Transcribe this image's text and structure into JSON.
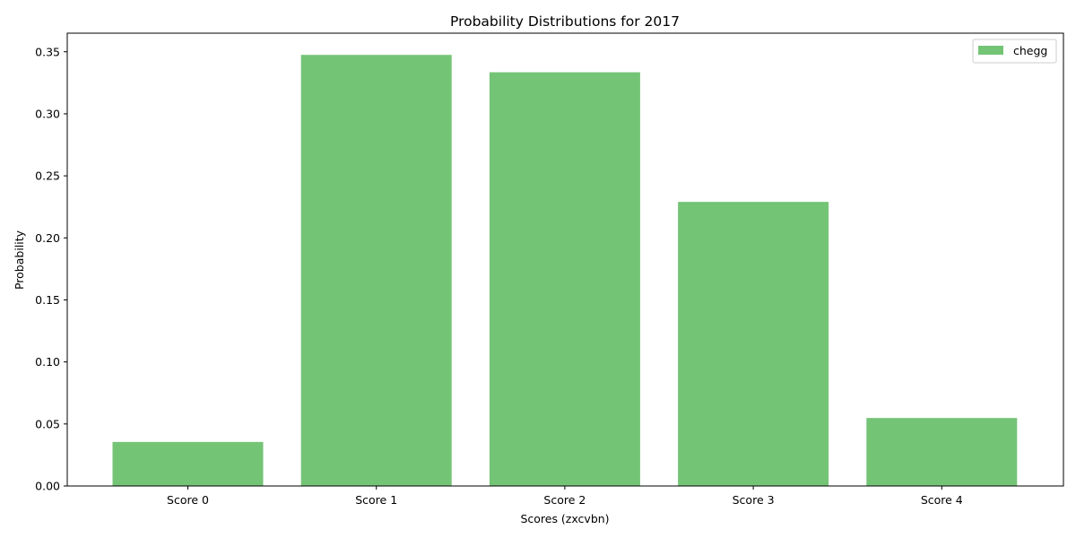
{
  "chart_data": {
    "type": "bar",
    "title": "Probability Distributions for 2017",
    "xlabel": "Scores (zxcvbn)",
    "ylabel": "Probability",
    "categories": [
      "Score 0",
      "Score 1",
      "Score 2",
      "Score 3",
      "Score 4"
    ],
    "series": [
      {
        "name": "chegg",
        "values": [
          0.0355,
          0.3475,
          0.3335,
          0.229,
          0.0548
        ],
        "color": "#74c476"
      }
    ],
    "ylim": [
      0,
      0.365
    ],
    "yticks": [
      0.0,
      0.05,
      0.1,
      0.15,
      0.2,
      0.25,
      0.3,
      0.35
    ],
    "ytick_labels": [
      "0.00",
      "0.05",
      "0.10",
      "0.15",
      "0.20",
      "0.25",
      "0.30",
      "0.35"
    ],
    "grid": false,
    "legend_position": "top-right"
  }
}
